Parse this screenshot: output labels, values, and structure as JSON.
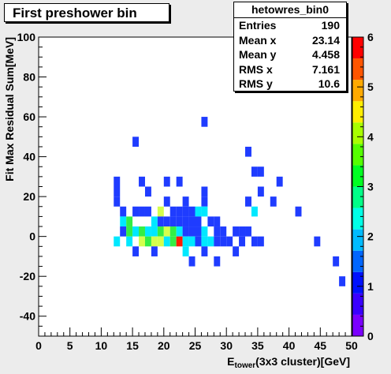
{
  "title": "First preshower bin",
  "stats": {
    "name": "hetowres_bin0",
    "rows": [
      {
        "label": "Entries",
        "value": "190"
      },
      {
        "label": "Mean x",
        "value": "23.14"
      },
      {
        "label": "Mean y",
        "value": "4.458"
      },
      {
        "label": "RMS x",
        "value": "7.161"
      },
      {
        "label": "RMS y",
        "value": "10.6"
      }
    ]
  },
  "chart_data": {
    "type": "heatmap",
    "title": "First preshower bin",
    "xlabel_main": "E",
    "xlabel_sub": "tower",
    "xlabel_rest": "(3x3 cluster)[GeV]",
    "ylabel": "Fit Max Residual Sum[MeV]",
    "xlim": [
      0,
      50
    ],
    "ylim": [
      -50,
      100
    ],
    "xticks": [
      0,
      5,
      10,
      15,
      20,
      25,
      30,
      35,
      40,
      45,
      50
    ],
    "yticks": [
      -40,
      -20,
      0,
      20,
      40,
      60,
      80,
      100
    ],
    "zlim": [
      0,
      6
    ],
    "zticks": [
      0,
      1,
      2,
      3,
      4,
      5,
      6
    ],
    "bin_size": {
      "x": 1,
      "y": 5
    },
    "cells": [
      [
        26,
        55,
        1
      ],
      [
        15,
        45,
        1
      ],
      [
        33,
        40,
        1
      ],
      [
        12,
        25,
        1
      ],
      [
        16,
        25,
        1
      ],
      [
        20,
        25,
        1
      ],
      [
        22,
        25,
        1
      ],
      [
        34,
        30,
        1
      ],
      [
        38,
        25,
        1
      ],
      [
        35,
        30,
        1
      ],
      [
        12,
        20,
        1
      ],
      [
        17,
        20,
        1
      ],
      [
        26,
        20,
        1
      ],
      [
        35,
        20,
        1
      ],
      [
        12,
        15,
        1
      ],
      [
        20,
        15,
        1
      ],
      [
        23,
        15,
        1
      ],
      [
        26,
        15,
        1
      ],
      [
        33,
        15,
        1
      ],
      [
        37,
        15,
        1
      ],
      [
        13,
        10,
        1
      ],
      [
        15,
        10,
        1
      ],
      [
        16,
        10,
        1
      ],
      [
        17,
        10,
        1
      ],
      [
        19,
        10,
        3
      ],
      [
        21,
        10,
        1
      ],
      [
        22,
        10,
        1
      ],
      [
        23,
        10,
        1
      ],
      [
        24,
        10,
        1
      ],
      [
        25,
        10,
        2
      ],
      [
        26,
        10,
        2
      ],
      [
        34,
        10,
        2
      ],
      [
        41,
        10,
        1
      ],
      [
        13,
        5,
        2
      ],
      [
        14,
        5,
        4
      ],
      [
        18,
        5,
        2
      ],
      [
        19,
        5,
        1
      ],
      [
        20,
        5,
        1
      ],
      [
        21,
        5,
        1
      ],
      [
        22,
        5,
        1
      ],
      [
        23,
        5,
        1
      ],
      [
        24,
        5,
        1
      ],
      [
        25,
        5,
        1
      ],
      [
        27,
        5,
        1
      ],
      [
        28,
        5,
        1
      ],
      [
        13,
        0,
        1
      ],
      [
        14,
        0,
        4
      ],
      [
        15,
        0,
        2
      ],
      [
        16,
        0,
        4
      ],
      [
        17,
        0,
        2
      ],
      [
        18,
        0,
        2
      ],
      [
        19,
        0,
        4
      ],
      [
        20,
        0,
        3
      ],
      [
        21,
        0,
        4
      ],
      [
        22,
        0,
        2
      ],
      [
        23,
        0,
        1
      ],
      [
        24,
        0,
        1
      ],
      [
        25,
        0,
        1
      ],
      [
        26,
        0,
        2
      ],
      [
        28,
        0,
        1
      ],
      [
        29,
        0,
        1
      ],
      [
        31,
        0,
        1
      ],
      [
        32,
        0,
        1
      ],
      [
        33,
        0,
        1
      ],
      [
        12,
        -5,
        2
      ],
      [
        14,
        -5,
        2
      ],
      [
        16,
        -5,
        3
      ],
      [
        17,
        -5,
        4
      ],
      [
        18,
        -5,
        3
      ],
      [
        19,
        -5,
        3
      ],
      [
        20,
        -5,
        2
      ],
      [
        21,
        -5,
        4
      ],
      [
        22,
        -5,
        6
      ],
      [
        23,
        -5,
        2
      ],
      [
        24,
        -5,
        2
      ],
      [
        25,
        -5,
        1
      ],
      [
        26,
        -5,
        2
      ],
      [
        27,
        -5,
        2
      ],
      [
        28,
        -5,
        1
      ],
      [
        29,
        -5,
        1
      ],
      [
        30,
        -5,
        1
      ],
      [
        32,
        -5,
        1
      ],
      [
        34,
        -5,
        1
      ],
      [
        35,
        -5,
        1
      ],
      [
        44,
        -5,
        1
      ],
      [
        15,
        -10,
        1
      ],
      [
        18,
        -10,
        1
      ],
      [
        23,
        -10,
        2
      ],
      [
        26,
        -10,
        1
      ],
      [
        31,
        -10,
        1
      ],
      [
        24,
        -15,
        1
      ],
      [
        28,
        -15,
        1
      ],
      [
        47,
        -15,
        1
      ],
      [
        48,
        -25,
        1
      ]
    ]
  }
}
